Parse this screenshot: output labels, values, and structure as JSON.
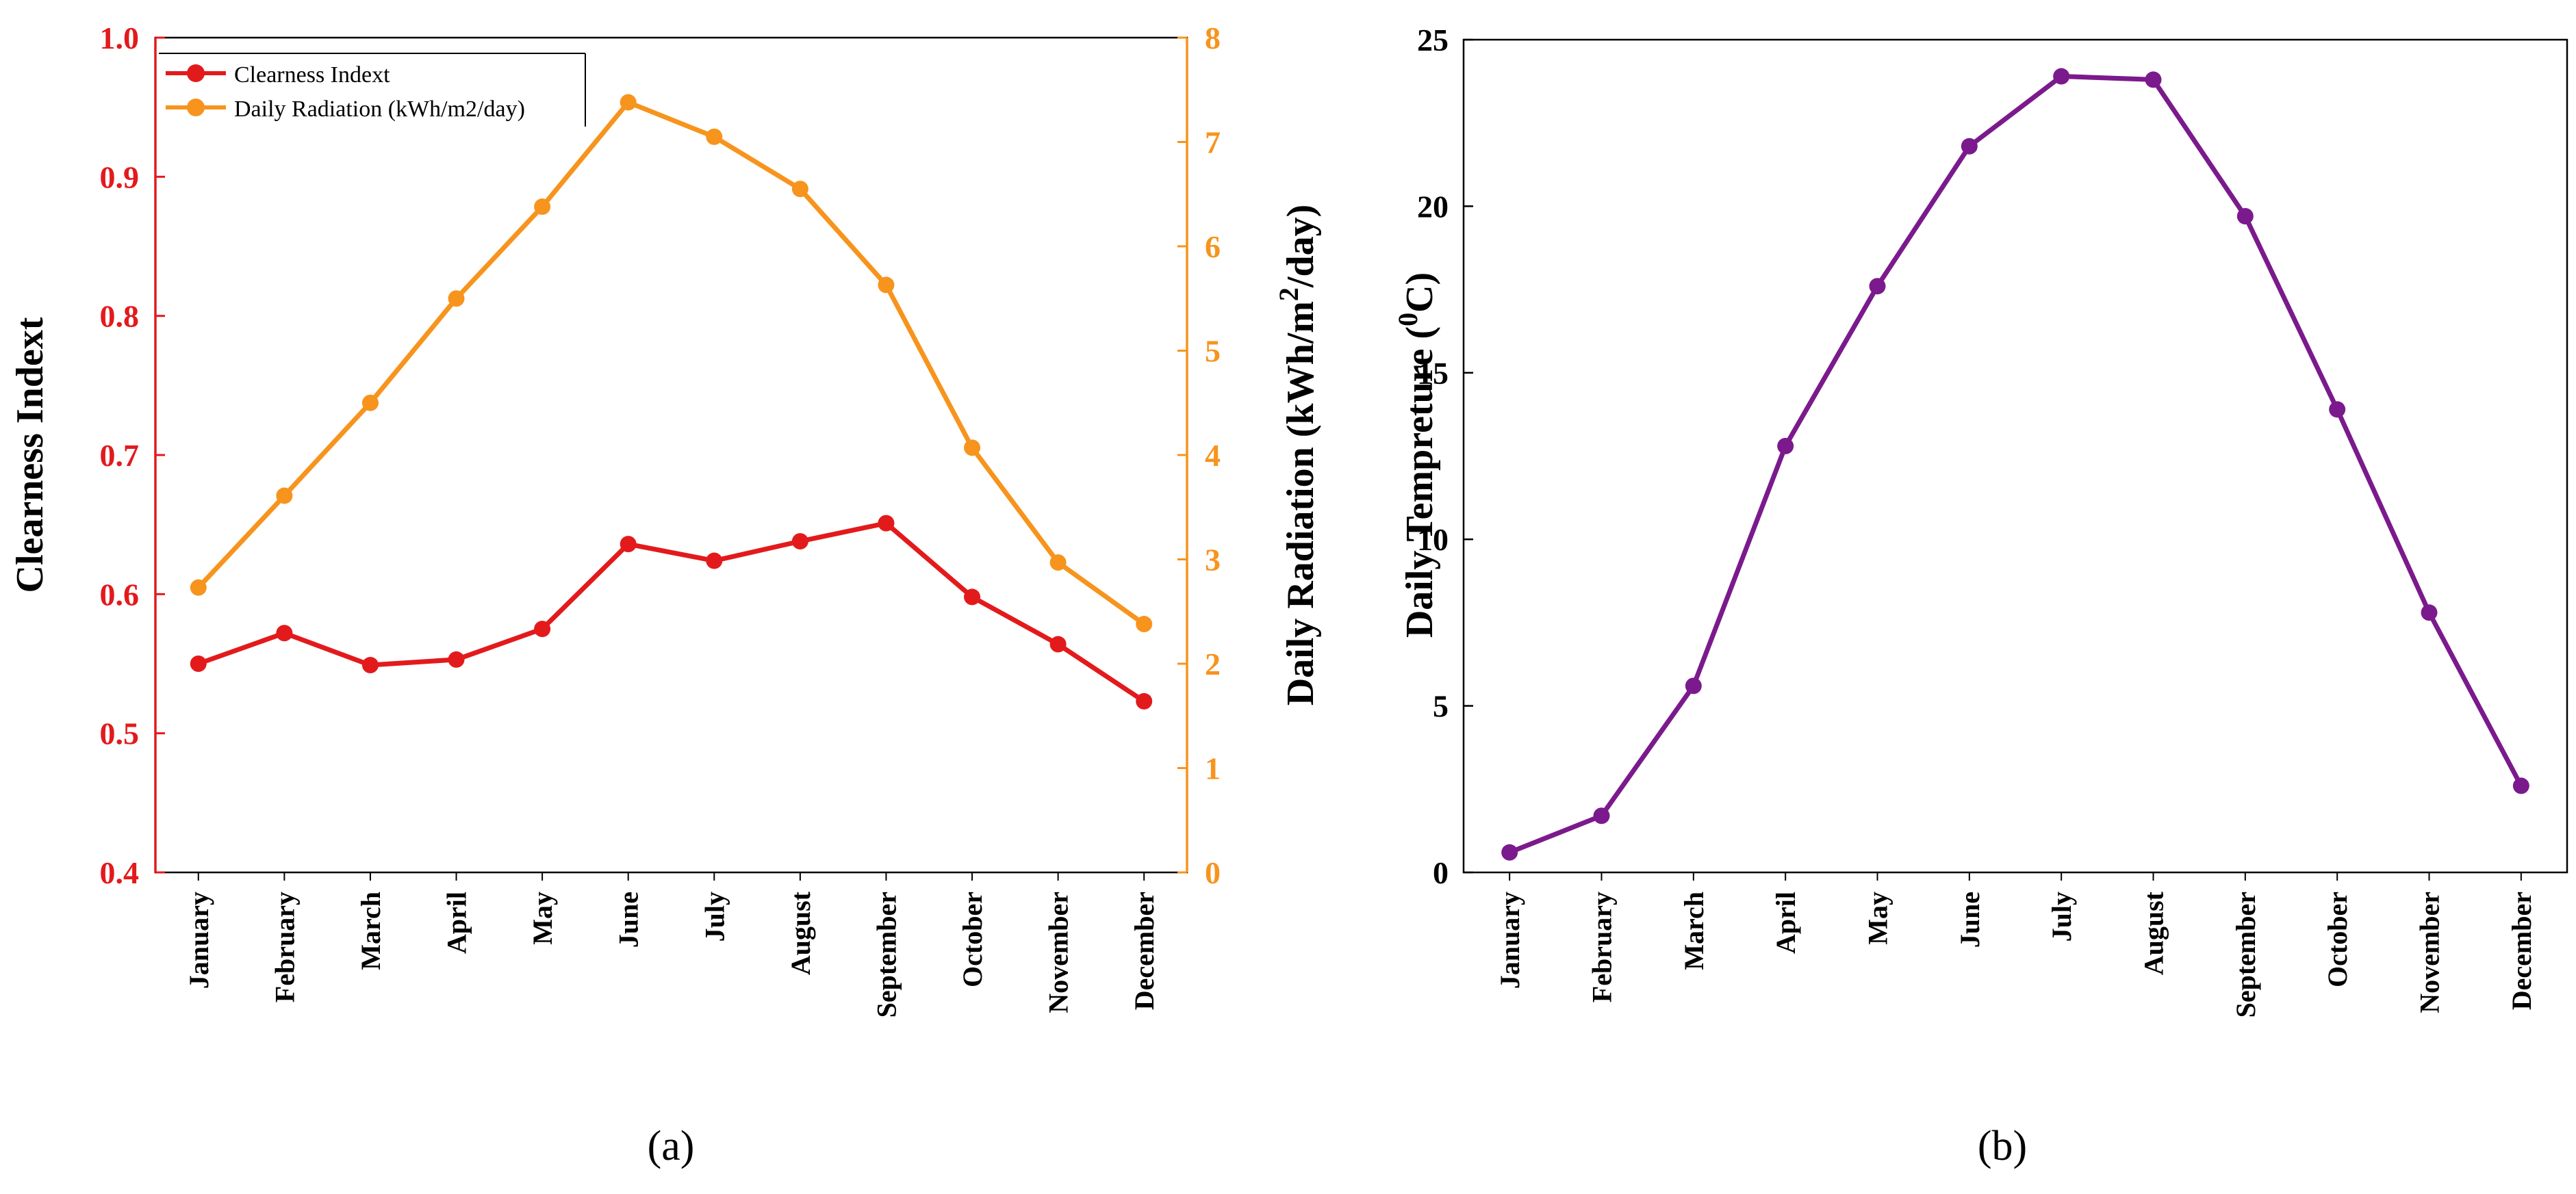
{
  "colors": {
    "clearness": "#e31a1c",
    "radiation": "#f7941d",
    "temperature": "#7b1a8c",
    "axis": "#000000"
  },
  "chart_data": [
    {
      "type": "line",
      "panel_label": "(a)",
      "categories": [
        "January",
        "February",
        "March",
        "April",
        "May",
        "June",
        "July",
        "August",
        "September",
        "October",
        "November",
        "December"
      ],
      "series": [
        {
          "name": "Clearness Indext",
          "axis": "left",
          "values": [
            0.55,
            0.572,
            0.549,
            0.553,
            0.575,
            0.636,
            0.624,
            0.638,
            0.651,
            0.598,
            0.564,
            0.523
          ]
        },
        {
          "name": "Daily Radiation (kWh/m2/day)",
          "axis": "right",
          "values": [
            2.73,
            3.61,
            4.5,
            5.5,
            6.38,
            7.38,
            7.05,
            6.55,
            5.63,
            4.07,
            2.97,
            2.38
          ]
        }
      ],
      "ylabel_left": "Clearness Indext",
      "ylim_left": [
        0.4,
        1.0
      ],
      "yticks_left": [
        "0.4",
        "0.5",
        "0.6",
        "0.7",
        "0.8",
        "0.9",
        "1.0"
      ],
      "ylabel_right_main": "Daily Radiation (kWh/m",
      "ylabel_right_sup": "2",
      "ylabel_right_tail": "/day)",
      "ylim_right": [
        0,
        8
      ],
      "yticks_right": [
        "0",
        "1",
        "2",
        "3",
        "4",
        "5",
        "6",
        "7",
        "8"
      ],
      "legend_position": "top-left",
      "grid": false
    },
    {
      "type": "line",
      "panel_label": "(b)",
      "categories": [
        "January",
        "February",
        "March",
        "April",
        "May",
        "June",
        "July",
        "August",
        "September",
        "October",
        "November",
        "December"
      ],
      "series": [
        {
          "name": "Daily Tempreture",
          "values": [
            0.6,
            1.7,
            5.6,
            12.8,
            17.6,
            21.8,
            23.9,
            23.8,
            19.7,
            13.9,
            7.8,
            2.6
          ]
        }
      ],
      "ylabel_main": "Daily Tempreture (",
      "ylabel_sup": "0",
      "ylabel_tail": "C)",
      "ylim": [
        0,
        25
      ],
      "yticks": [
        "0",
        "5",
        "10",
        "15",
        "20",
        "25"
      ],
      "grid": false
    }
  ]
}
